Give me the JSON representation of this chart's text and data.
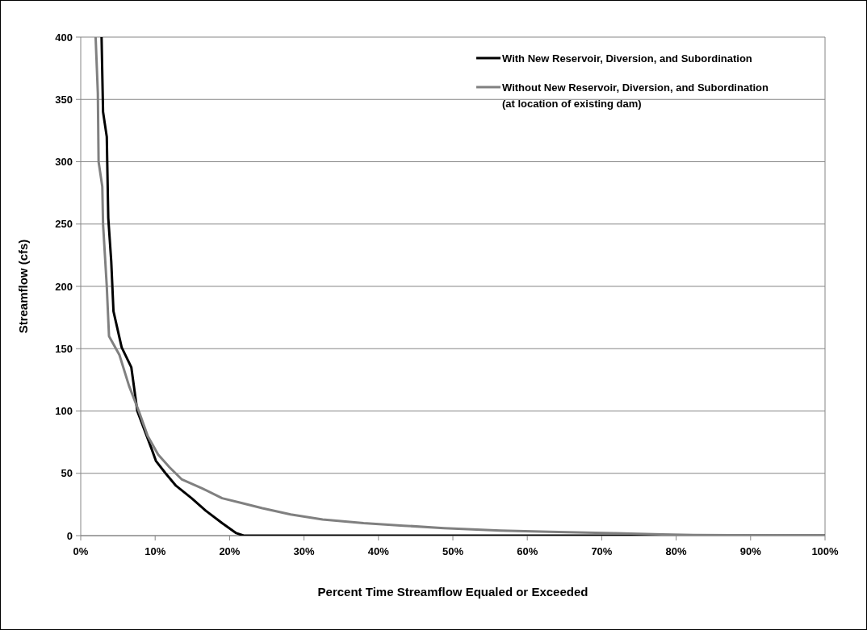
{
  "chart_data": {
    "type": "line",
    "xlabel": "Percent Time Streamflow Equaled or Exceeded",
    "ylabel": "Streamflow (cfs)",
    "xlim": [
      0,
      100
    ],
    "xticks": [
      {
        "value": 0,
        "label": "0%"
      },
      {
        "value": 10,
        "label": "10%"
      },
      {
        "value": 20,
        "label": "20%"
      },
      {
        "value": 30,
        "label": "30%"
      },
      {
        "value": 40,
        "label": "40%"
      },
      {
        "value": 50,
        "label": "50%"
      },
      {
        "value": 60,
        "label": "60%"
      },
      {
        "value": 70,
        "label": "70%"
      },
      {
        "value": 80,
        "label": "80%"
      },
      {
        "value": 90,
        "label": "90%"
      },
      {
        "value": 100,
        "label": "100%"
      }
    ],
    "ylim": [
      0,
      400
    ],
    "yticks": [
      0,
      50,
      100,
      150,
      200,
      250,
      300,
      350,
      400
    ],
    "grid": "y",
    "legend": "top right",
    "marker": "none",
    "line_style": "solid",
    "series": [
      {
        "name": "With New Reservoir, Diversion, and Subordination",
        "color": "#000000",
        "x": [
          2.8,
          3.0,
          3.5,
          3.7,
          4.1,
          4.4,
          5.5,
          6.8,
          7.6,
          9.5,
          10.1,
          11.4,
          12.8,
          14.9,
          16.8,
          19.0,
          20.9,
          21.9,
          100
        ],
        "values": [
          400,
          340,
          320,
          255,
          220,
          180,
          151,
          135,
          100,
          70,
          60,
          50,
          40,
          30,
          20,
          10,
          2,
          0,
          0
        ]
      },
      {
        "name": "Without New Reservoir, Diversion, and Subordination\n(at location of existing dam)",
        "color": "#808080",
        "x": [
          2.0,
          2.3,
          2.4,
          2.9,
          3.0,
          3.5,
          3.8,
          5.2,
          6.5,
          7.8,
          9.0,
          10.4,
          11.9,
          13.6,
          16.3,
          19.0,
          21.7,
          24.4,
          28.2,
          32.5,
          38,
          43.4,
          48.8,
          56.4,
          63,
          71.6,
          78.1,
          82.4,
          100
        ],
        "values": [
          400,
          355,
          300,
          280,
          250,
          200,
          160,
          145,
          120,
          100,
          80,
          65,
          55,
          45,
          38,
          30,
          26,
          22,
          17,
          13,
          10,
          8,
          6,
          4,
          3,
          2,
          1,
          0.5,
          0
        ]
      }
    ]
  }
}
